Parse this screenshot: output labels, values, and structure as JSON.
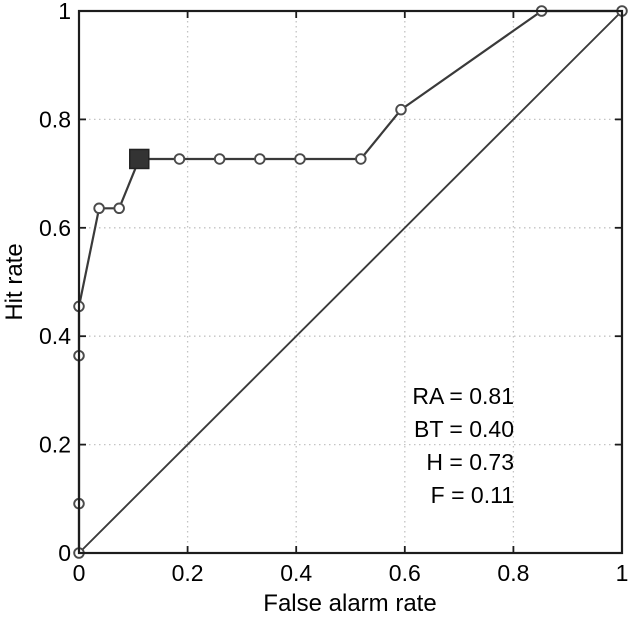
{
  "chart_data": {
    "type": "line",
    "title": "",
    "xlabel": "False alarm rate",
    "ylabel": "Hit rate",
    "xlim": [
      0,
      1
    ],
    "ylim": [
      0,
      1
    ],
    "xticks": [
      0,
      0.2,
      0.4,
      0.6,
      0.8,
      1
    ],
    "yticks": [
      0,
      0.2,
      0.4,
      0.6,
      0.8,
      1
    ],
    "xtick_labels": [
      "0",
      "0.2",
      "0.4",
      "0.6",
      "0.8",
      "1"
    ],
    "ytick_labels": [
      "0",
      "0.2",
      "0.4",
      "0.6",
      "0.8",
      "1"
    ],
    "grid": "dotted",
    "legend": "none",
    "series": [
      {
        "name": "ROC curve",
        "marker": "circle",
        "x": [
          0,
          0,
          0,
          0,
          0.037,
          0.074,
          0.111,
          0.185,
          0.259,
          0.333,
          0.407,
          0.519,
          0.593,
          0.852,
          1
        ],
        "y": [
          0,
          0.091,
          0.364,
          0.455,
          0.636,
          0.636,
          0.727,
          0.727,
          0.727,
          0.727,
          0.727,
          0.727,
          0.818,
          1,
          1
        ]
      },
      {
        "name": "chance diagonal",
        "marker": "none",
        "x": [
          0,
          1
        ],
        "y": [
          0,
          1
        ]
      }
    ],
    "operating_point": {
      "x": 0.111,
      "y": 0.727,
      "marker": "filled-square",
      "series_index": 6
    },
    "annotation": {
      "align": "right",
      "lines": [
        "RA = 0.81",
        "BT = 0.40",
        "H = 0.73",
        "F = 0.11"
      ],
      "values": {
        "RA": 0.81,
        "BT": 0.4,
        "H": 0.73,
        "F": 0.11
      }
    },
    "colors": {
      "roc_line": "#3a3a3a",
      "marker_stroke": "#4a4a4a",
      "marker_fill": "#ffffff",
      "square_fill": "#333333",
      "diagonal": "#3a3a3a",
      "grid": "#c3c3c3",
      "axis_box": "#1c1c1c",
      "text": "#000000",
      "background": "#ffffff"
    }
  }
}
